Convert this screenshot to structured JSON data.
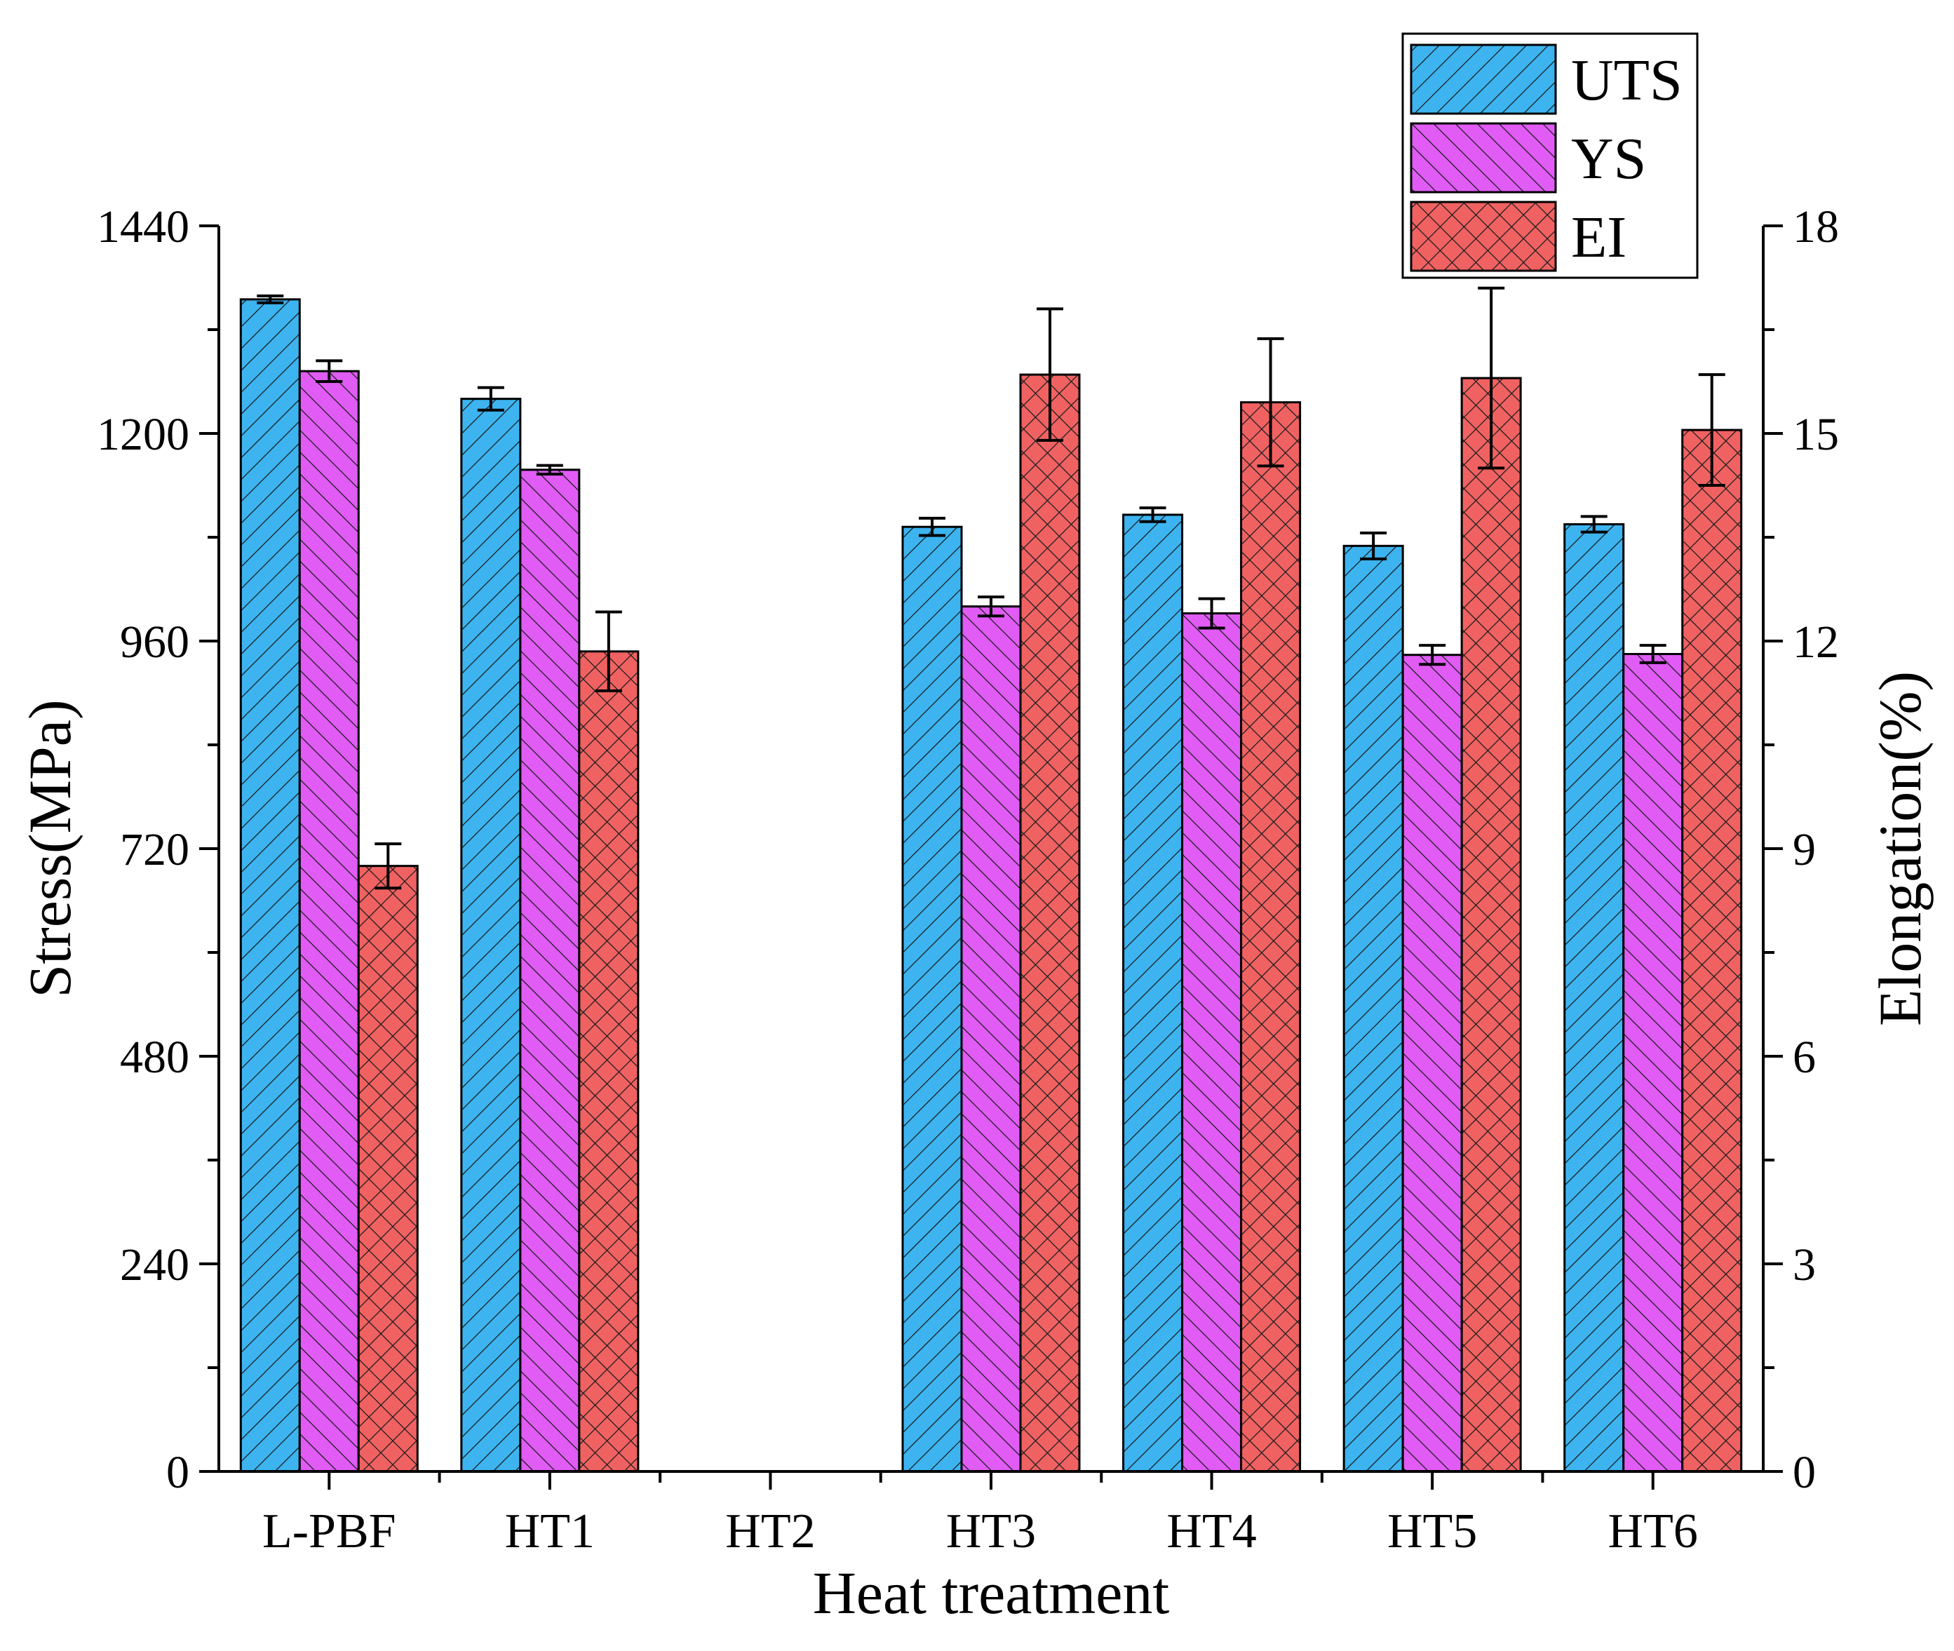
{
  "chart_data": {
    "type": "bar",
    "xlabel": "Heat treatment",
    "ylabel_left": "Stress(MPa)",
    "ylabel_right": "Elongation(%)",
    "ylim_left": [
      0,
      1440
    ],
    "ylim_right": [
      0,
      18
    ],
    "yticks_left": [
      "0",
      "240",
      "480",
      "720",
      "960",
      "1200",
      "1440"
    ],
    "yticks_right": [
      "0",
      "3",
      "6",
      "9",
      "12",
      "15",
      "18"
    ],
    "categories": [
      "L-PBF",
      "HT1",
      "HT2",
      "HT3",
      "HT4",
      "HT5",
      "HT6"
    ],
    "series": [
      {
        "name": "UTS",
        "axis": "left",
        "color": "#3db4f0",
        "pattern": "forward-diagonal",
        "values": [
          1355,
          1240,
          null,
          1092,
          1106,
          1070,
          1095
        ],
        "errors": [
          4,
          13,
          null,
          10,
          8,
          15,
          9
        ]
      },
      {
        "name": "YS",
        "axis": "left",
        "color": "#e05cf5",
        "pattern": "back-diagonal",
        "values": [
          1272,
          1158,
          null,
          1000,
          992,
          944,
          945
        ],
        "errors": [
          12,
          5,
          null,
          11,
          17,
          11,
          10
        ]
      },
      {
        "name": "EI",
        "axis": "right",
        "color": "#f06262",
        "pattern": "crosshatch",
        "values": [
          8.75,
          11.85,
          null,
          15.85,
          15.45,
          15.8,
          15.05
        ],
        "errors": [
          0.32,
          0.57,
          null,
          0.95,
          0.92,
          1.3,
          0.8
        ]
      }
    ],
    "legend": [
      "UTS",
      "YS",
      "EI"
    ],
    "legend_position": "top-right"
  }
}
